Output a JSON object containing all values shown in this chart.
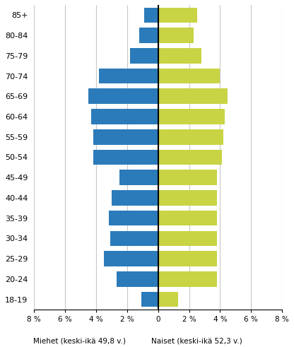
{
  "age_groups": [
    "18-19",
    "20-24",
    "25-29",
    "30-34",
    "35-39",
    "40-44",
    "45-49",
    "50-54",
    "55-59",
    "60-64",
    "65-69",
    "70-74",
    "75-79",
    "80-84",
    "85+"
  ],
  "men": [
    1.1,
    2.7,
    3.5,
    3.1,
    3.2,
    3.0,
    2.5,
    4.2,
    4.2,
    4.3,
    4.5,
    3.8,
    1.8,
    1.2,
    0.9
  ],
  "women": [
    1.3,
    3.8,
    3.8,
    3.8,
    3.8,
    3.8,
    3.8,
    4.1,
    4.2,
    4.3,
    4.5,
    4.0,
    2.8,
    2.3,
    2.5
  ],
  "men_color": "#2b7bba",
  "women_color": "#c8d444",
  "xlabel_men": "Miehet (keski-ikä 49,8 v.)",
  "xlabel_women": "Naiset (keski-ikä 52,3 v.)",
  "xlim": 8,
  "background_color": "#ffffff",
  "grid_color": "#c8c8c8",
  "bar_height": 0.75
}
